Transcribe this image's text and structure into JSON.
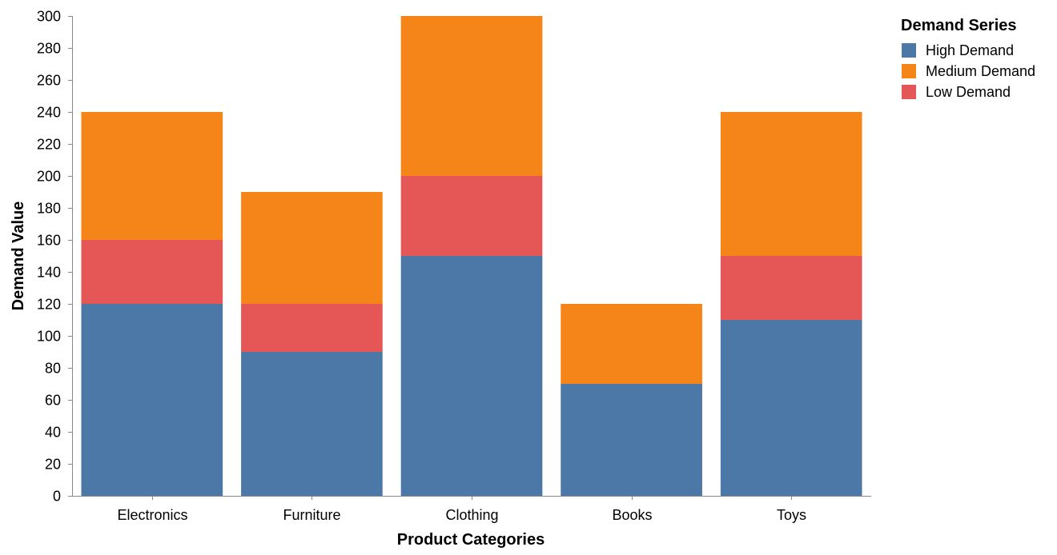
{
  "chart_data": {
    "type": "bar",
    "stacked": true,
    "title": "",
    "xlabel": "Product Categories",
    "ylabel": "Demand Value",
    "categories": [
      "Electronics",
      "Furniture",
      "Clothing",
      "Books",
      "Toys"
    ],
    "series": [
      {
        "name": "High Demand",
        "color": "#4c78a8",
        "values": [
          120,
          90,
          150,
          70,
          110
        ]
      },
      {
        "name": "Low Demand",
        "color": "#e45756",
        "values": [
          40,
          30,
          50,
          0,
          40
        ]
      },
      {
        "name": "Medium Demand",
        "color": "#f58518",
        "values": [
          80,
          70,
          100,
          50,
          90
        ]
      }
    ],
    "ylim": [
      0,
      300
    ],
    "yticks": [
      0,
      20,
      40,
      60,
      80,
      100,
      120,
      140,
      160,
      180,
      200,
      220,
      240,
      260,
      280,
      300
    ],
    "grid": false,
    "legend": {
      "title": "Demand Series",
      "position": "top-right",
      "entries": [
        {
          "label": "High Demand",
          "color": "#4c78a8"
        },
        {
          "label": "Medium Demand",
          "color": "#f58518"
        },
        {
          "label": "Low Demand",
          "color": "#e45756"
        }
      ]
    }
  }
}
